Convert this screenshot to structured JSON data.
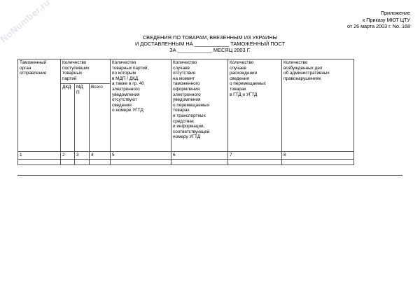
{
  "watermark": "NoNumber.ru",
  "appendix": [
    "Приложение",
    "к Приказу МЮТ ЦТУ",
    "от 26 марта 2003 г. No. 168"
  ],
  "title": [
    "СВЕДЕНИЯ ПО ТОВАРАМ, ВВЕЗЕННЫМ ИЗ УКРАИНЫ",
    "И ДОСТАВЛЕННЫМ НА ____________ ТАМОЖЕННЫЙ ПОСТ",
    "ЗА ____________ МЕСЯЦ 2003 Г."
  ],
  "table": {
    "headers": {
      "c1": "Таможенный\nорган\nотправления",
      "c2": "Количество\nпоступивших\nтоварных\nпартий",
      "c2_sub": [
        "ДКД",
        "МД\nП",
        "Всего"
      ],
      "c5": "Количество\nтоварных партий,\nпо которым\nв МДП / ДКД,\nа также в гр. 40\nэлектронного\nуведомления\nотсутствуют\nсведения\nо номере УГТД",
      "c6": "Количество\nслучаев\nотсутствия\nна момент\nтаможенного\nоформления\nэлектронного\nуведомления\nо перемещаемых\nтоварах\nи транспортных\nсредствах\nи информации,\nсоответствующей\nномеру УГТД",
      "c7": "Количество\nслучаев\nрасхождения\nсведения\nо перемещаемых\nтоварах\nв ГТД и УГТД",
      "c8": "Количество\nвозбужденных дел\nоб административных\nправонарушениях"
    },
    "numbers": [
      "1",
      "2",
      "3",
      "4",
      "5",
      "6",
      "7",
      "8"
    ]
  }
}
